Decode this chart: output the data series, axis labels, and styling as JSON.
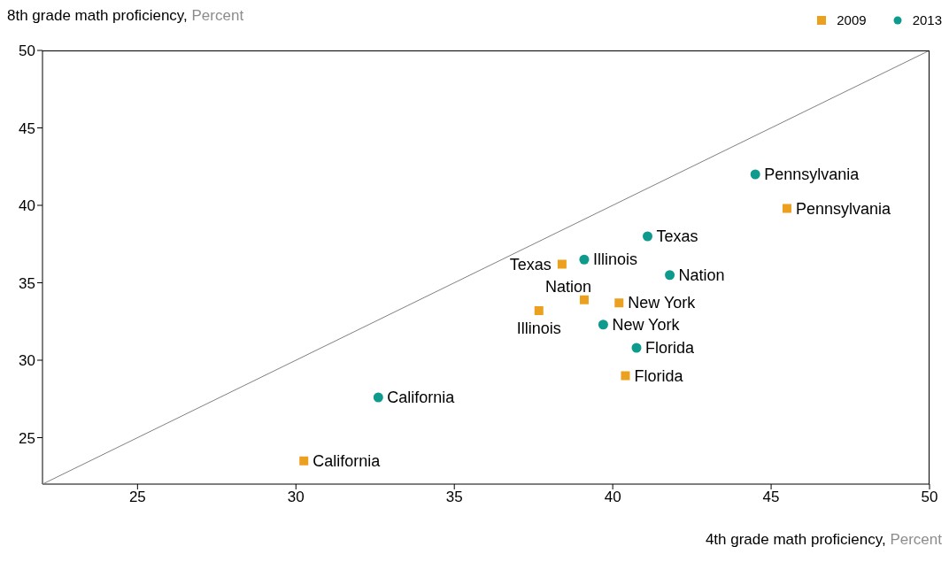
{
  "chart_data": {
    "type": "scatter",
    "xlabel": "4th grade math proficiency, Percent",
    "ylabel": "8th grade math proficiency, Percent",
    "xlim": [
      22,
      50
    ],
    "ylim": [
      22,
      50
    ],
    "xticks": [
      25,
      30,
      35,
      40,
      45,
      50
    ],
    "yticks": [
      25,
      30,
      35,
      40,
      45,
      50
    ],
    "legend": "top right",
    "series": [
      {
        "name": "2009",
        "color": "#eba01f",
        "marker": "square",
        "x": [
          30.25,
          37.67,
          38.4,
          39.1,
          40.2,
          40.4,
          45.5
        ],
        "values": [
          23.5,
          33.2,
          36.2,
          33.9,
          33.7,
          29.0,
          39.8
        ]
      },
      {
        "name": "2013",
        "color": "#0e9a8c",
        "marker": "circle",
        "x": [
          32.6,
          39.1,
          39.7,
          41.1,
          41.8,
          40.75,
          44.5
        ],
        "values": [
          27.6,
          36.5,
          32.3,
          38.0,
          35.5,
          30.8,
          42.0
        ]
      },
      {
        "type": "line",
        "color": "#808080",
        "x": [
          22,
          50
        ],
        "values": [
          22,
          50
        ]
      }
    ],
    "annotations": [
      {
        "text": "California",
        "x": 30.25,
        "y": 23.5
      },
      {
        "text": "Illinois",
        "x": 37.67,
        "y": 33.2
      },
      {
        "text": "Texas",
        "x": 38.4,
        "y": 36.2
      },
      {
        "text": "Nation",
        "x": 39.1,
        "y": 33.9
      },
      {
        "text": "New York",
        "x": 40.2,
        "y": 33.7
      },
      {
        "text": "Florida",
        "x": 40.4,
        "y": 29.0
      },
      {
        "text": "Pennsylvania",
        "x": 45.5,
        "y": 39.8
      },
      {
        "text": "California",
        "x": 32.6,
        "y": 27.6
      },
      {
        "text": "Illinois",
        "x": 39.1,
        "y": 36.5
      },
      {
        "text": "New York",
        "x": 39.7,
        "y": 32.3
      },
      {
        "text": "Texas",
        "x": 41.1,
        "y": 38.0
      },
      {
        "text": "Nation",
        "x": 41.8,
        "y": 35.5
      },
      {
        "text": "Florida",
        "x": 40.75,
        "y": 30.8
      },
      {
        "text": "Pennsylvania",
        "x": 44.5,
        "y": 42.0
      }
    ]
  }
}
